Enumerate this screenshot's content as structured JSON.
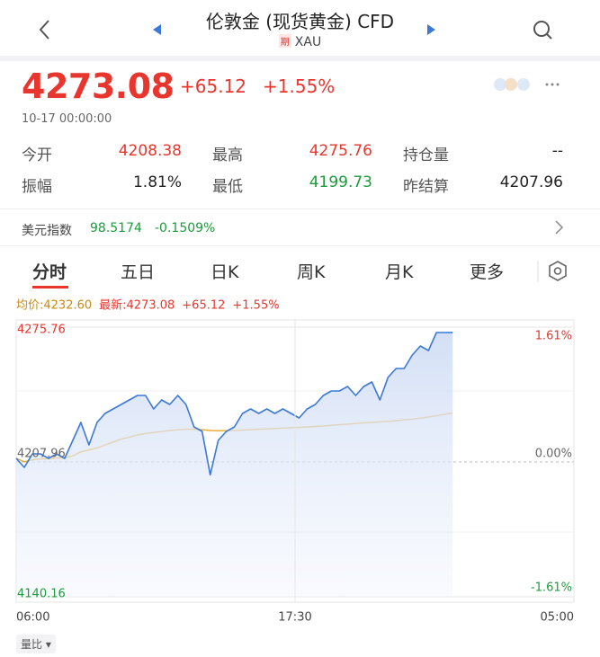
{
  "header": {
    "title": "伦敦金 (现货黄金) CFD",
    "badge": "期",
    "code": "XAU"
  },
  "quote": {
    "price": "4273.08",
    "change": "+65.12",
    "change_pct": "+1.55%",
    "time": "10-17 00:00:00"
  },
  "stats": [
    [
      "今开",
      "4208.38",
      "最高",
      "4275.76",
      "持仓量",
      "--"
    ],
    [
      "振幅",
      "1.81%",
      "最低",
      "4199.73",
      "昨结算",
      "4207.96"
    ]
  ],
  "index_bar": {
    "name": "美元指数",
    "value": "98.5174",
    "change": "-0.1509%"
  },
  "tabs": [
    "分时",
    "五日",
    "日K",
    "周K",
    "月K",
    "更多"
  ],
  "chart_data": {
    "type": "line",
    "series": [
      {
        "name": "最新:4273.08",
        "color": "#3b78d8",
        "values": [
          4209.77,
          4205.25,
          4212.03,
          4212.03,
          4209.77,
          4212.03,
          4209.77,
          4218.81,
          4227.85,
          4216.55,
          4227.85,
          4232.37,
          4234.63,
          4236.89,
          4239.15,
          4241.41,
          4241.41,
          4234.63,
          4239.15,
          4236.89,
          4241.41,
          4236.89,
          4225.59,
          4223.33,
          4201.5,
          4218.81,
          4223.33,
          4225.59,
          4232.37,
          4234.63,
          4232.37,
          4234.63,
          4232.37,
          4234.63,
          4232.37,
          4230.11,
          4234.63,
          4236.89,
          4241.41,
          4243.67,
          4243.67,
          4245.93,
          4241.41,
          4245.93,
          4248.19,
          4239.15,
          4250.45,
          4254.97,
          4254.97,
          4261.75,
          4266.27,
          4264.01,
          4273.05,
          4273.05,
          4273.08
        ]
      },
      {
        "name": "均价:4232.60",
        "color": "#eba825",
        "values": [
          4209.8,
          4208,
          4209,
          4209.5,
          4209.5,
          4210,
          4210,
          4211,
          4213,
          4214,
          4215,
          4216.5,
          4218,
          4219.5,
          4220.5,
          4221.5,
          4222.3,
          4222.8,
          4223.3,
          4223.8,
          4224.2,
          4224.4,
          4224.4,
          4224.2,
          4223.8,
          4223.7,
          4223.7,
          4223.8,
          4224,
          4224.2,
          4224.4,
          4224.6,
          4224.8,
          4225,
          4225.2,
          4225.4,
          4225.6,
          4225.8,
          4226.1,
          4226.4,
          4226.7,
          4227,
          4227.3,
          4227.6,
          4227.9,
          4228.1,
          4228.4,
          4228.7,
          4229.1,
          4229.5,
          4230,
          4230.6,
          4231.2,
          4231.9,
          4232.6
        ]
      }
    ],
    "latest_change": "+65.12",
    "latest_change_pct": "+1.55%",
    "x": [
      "06:00",
      "06:20",
      "06:40",
      "07:00",
      "07:20",
      "07:40",
      "08:00",
      "08:20",
      "08:40",
      "09:00",
      "09:20",
      "09:40",
      "10:00",
      "10:20",
      "10:40",
      "11:00",
      "11:20",
      "11:40",
      "12:00",
      "12:20",
      "12:40",
      "13:00",
      "13:20",
      "13:40",
      "14:00",
      "14:20",
      "14:40",
      "15:00",
      "15:20",
      "15:40",
      "16:00",
      "16:20",
      "16:40",
      "17:00",
      "17:20",
      "17:40",
      "18:00",
      "18:20",
      "18:40",
      "19:00",
      "19:20",
      "19:40",
      "20:00",
      "20:20",
      "20:40",
      "21:00",
      "21:20",
      "21:40",
      "22:00",
      "22:20",
      "22:40",
      "23:00",
      "23:20",
      "23:40",
      "00:00"
    ],
    "xlim": [
      "06:00",
      "05:00"
    ],
    "xticks": [
      "06:00",
      "17:30",
      "05:00"
    ],
    "ylim": [
      4140.16,
      4275.76
    ],
    "yticks": [
      4140.16,
      4207.96,
      4275.76
    ],
    "y2lim": [
      -1.61,
      1.61
    ],
    "y2ticks": [
      {
        "value": 1.61,
        "label": "1.61%"
      },
      {
        "value": 0,
        "label": "0.00%"
      },
      {
        "value": -1.61,
        "label": "-1.61%"
      }
    ],
    "area": true
  },
  "footer": {
    "button": "量比"
  }
}
